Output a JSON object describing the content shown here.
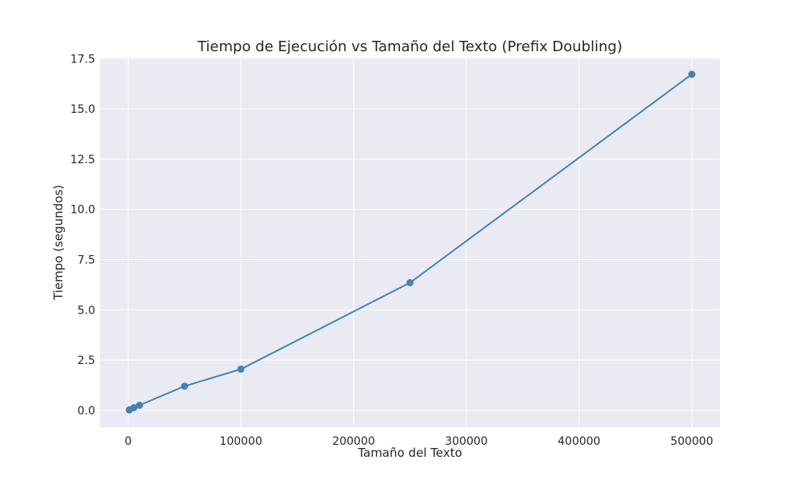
{
  "chart_data": {
    "type": "line",
    "title": "Tiempo de Ejecución vs Tamaño del Texto (Prefix Doubling)",
    "xlabel": "Tamaño del Texto",
    "ylabel": "Tiempo (segundos)",
    "xlim": [
      -25000,
      525000
    ],
    "ylim": [
      -0.84,
      17.55
    ],
    "xticks": [
      0,
      100000,
      200000,
      300000,
      400000,
      500000
    ],
    "xtick_labels": [
      "0",
      "100000",
      "200000",
      "300000",
      "400000",
      "500000"
    ],
    "yticks": [
      0,
      2.5,
      5,
      7.5,
      10,
      12.5,
      15,
      17.5
    ],
    "ytick_labels": [
      "0.0",
      "2.5",
      "5.0",
      "7.5",
      "10.0",
      "12.5",
      "15.0",
      "17.5"
    ],
    "grid": true,
    "legend": "none",
    "series": [
      {
        "x": [
          1000,
          5000,
          10000,
          50000,
          100000,
          250000,
          500000
        ],
        "y": [
          0.02,
          0.13,
          0.25,
          1.2,
          2.05,
          6.35,
          16.72
        ]
      }
    ],
    "colors": {
      "background": "#eaeaf2",
      "grid": "#ffffff",
      "line": "#4682b4",
      "marker": "#4682b4",
      "text": "#262626"
    }
  }
}
